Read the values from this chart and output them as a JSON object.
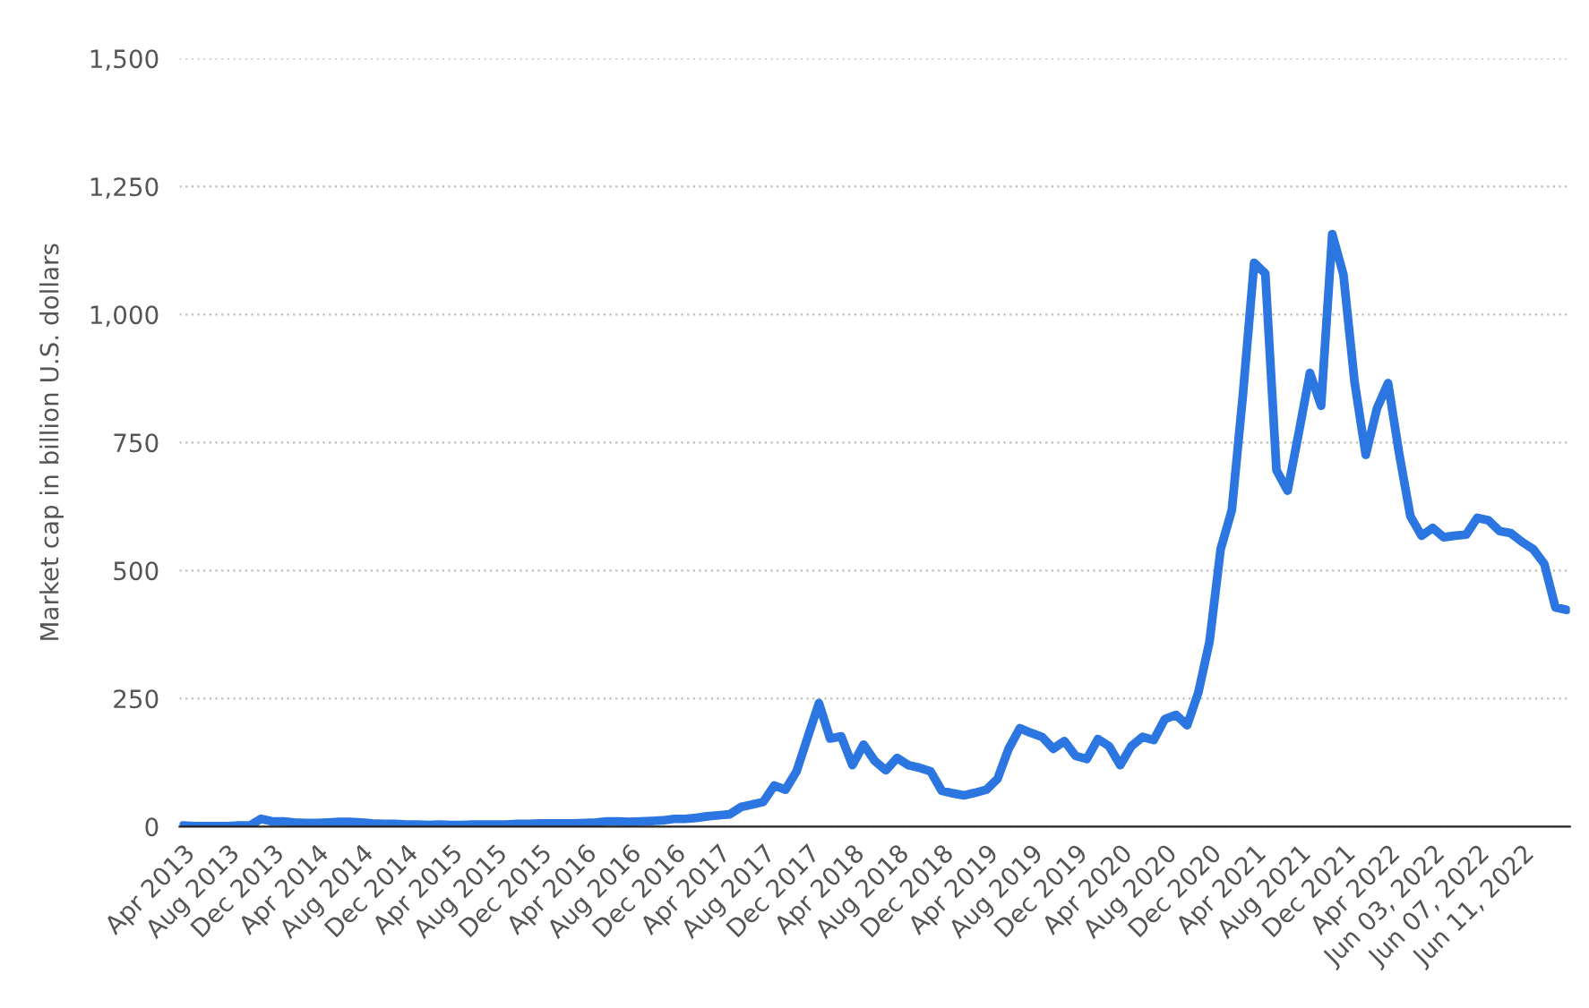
{
  "chart_data": {
    "type": "line",
    "ylabel": "Market cap in billion U.S. dollars",
    "categories": [
      "Apr 2013",
      null,
      null,
      null,
      "Aug 2013",
      null,
      null,
      null,
      "Dec 2013",
      null,
      null,
      null,
      "Apr 2014",
      null,
      null,
      null,
      "Aug 2014",
      null,
      null,
      null,
      "Dec 2014",
      null,
      null,
      null,
      "Apr 2015",
      null,
      null,
      null,
      "Aug 2015",
      null,
      null,
      null,
      "Dec 2015",
      null,
      null,
      null,
      "Apr 2016",
      null,
      null,
      null,
      "Aug 2016",
      null,
      null,
      null,
      "Dec 2016",
      null,
      null,
      null,
      "Apr 2017",
      null,
      null,
      null,
      "Aug 2017",
      null,
      null,
      null,
      "Dec 2017",
      null,
      null,
      null,
      "Apr 2018",
      null,
      null,
      null,
      "Aug 2018",
      null,
      null,
      null,
      "Dec 2018",
      null,
      null,
      null,
      "Apr 2019",
      null,
      null,
      null,
      "Aug 2019",
      null,
      null,
      null,
      "Dec 2019",
      null,
      null,
      null,
      "Apr 2020",
      null,
      null,
      null,
      "Aug 2020",
      null,
      null,
      null,
      "Dec 2020",
      null,
      null,
      null,
      "Apr 2021",
      null,
      null,
      null,
      "Aug 2021",
      null,
      null,
      null,
      "Dec 2021",
      null,
      null,
      null,
      "Apr 2022",
      null,
      null,
      null,
      "Jun 03, 2022",
      null,
      null,
      null,
      "Jun 07, 2022",
      null,
      null,
      null,
      "Jun 11, 2022",
      null,
      null,
      null,
      null
    ],
    "series": [
      {
        "color": "#2b76e0",
        "values": [
          2,
          1,
          1,
          1,
          1,
          2,
          2,
          15,
          10,
          10,
          8,
          7,
          7,
          8,
          9,
          9,
          8,
          6,
          5,
          5,
          4,
          4,
          3,
          4,
          3,
          3,
          4,
          4,
          4,
          4,
          5,
          5,
          6,
          6,
          6,
          6,
          7,
          8,
          10,
          10,
          9,
          10,
          11,
          12,
          15,
          15,
          17,
          20,
          22,
          24,
          38,
          43,
          48,
          80,
          72,
          108,
          175,
          241,
          172,
          176,
          120,
          160,
          128,
          110,
          134,
          120,
          115,
          108,
          70,
          65,
          61,
          66,
          72,
          93,
          152,
          192,
          183,
          175,
          152,
          167,
          138,
          132,
          171,
          157,
          120,
          157,
          175,
          169,
          210,
          218,
          198,
          262,
          361,
          542,
          618,
          845,
          1101,
          1080,
          696,
          656,
          769,
          886,
          822,
          1157,
          1078,
          868,
          726,
          816,
          866,
          728,
          606,
          568,
          583,
          565,
          568,
          570,
          603,
          598,
          577,
          573,
          556,
          542,
          513,
          428,
          423
        ]
      }
    ],
    "ylim": [
      0,
      1500
    ],
    "yticks": [
      0,
      {
        "value": 250,
        "label": "250"
      },
      {
        "value": 500,
        "label": "500"
      },
      {
        "value": 750,
        "label": "750"
      },
      {
        "value": 1000,
        "label": "1,000"
      },
      {
        "value": 1250,
        "label": "1,250"
      },
      {
        "value": 1500,
        "label": "1,500"
      }
    ],
    "grid": "y",
    "marker": "none",
    "line_style": "solid",
    "legend": false
  }
}
